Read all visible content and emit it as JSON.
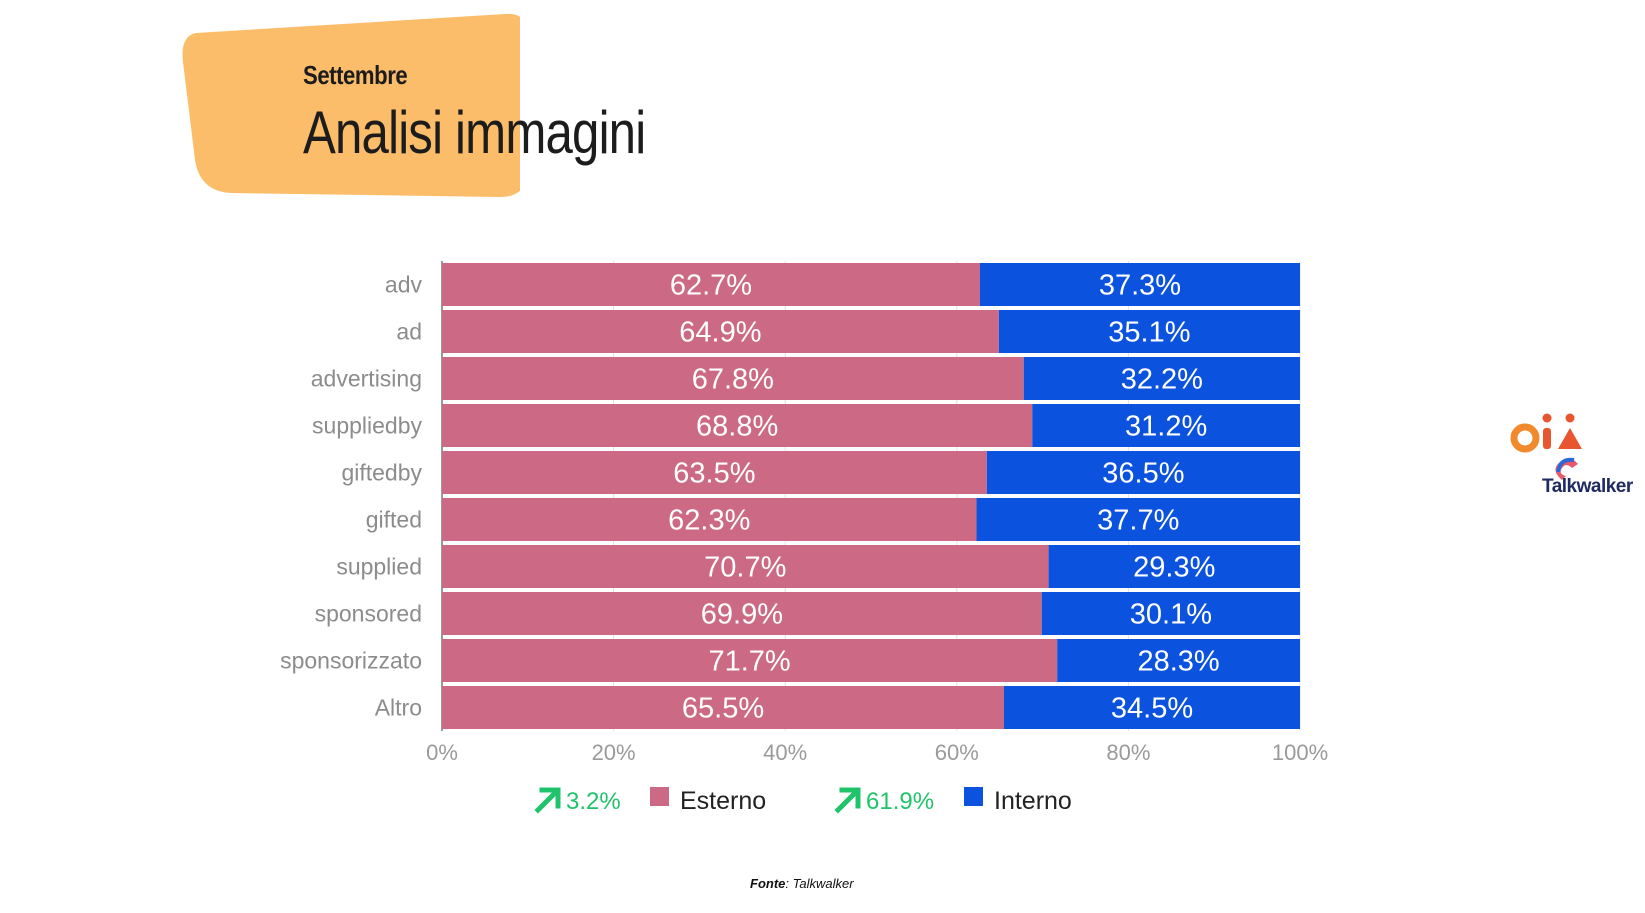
{
  "header": {
    "subtitle": "Settembre",
    "title": "Analisi immagini",
    "blob_color": "#fbbd6a"
  },
  "chart_data": {
    "type": "bar",
    "orientation": "horizontal",
    "stacked": true,
    "percent_stacked": true,
    "categories": [
      "adv",
      "ad",
      "advertising",
      "suppliedby",
      "giftedby",
      "gifted",
      "supplied",
      "sponsored",
      "sponsorizzato",
      "Altro"
    ],
    "series": [
      {
        "name": "Esterno",
        "color": "#cc6a85",
        "values": [
          62.7,
          64.9,
          67.8,
          68.8,
          63.5,
          62.3,
          70.7,
          69.9,
          71.7,
          65.5
        ],
        "labels": [
          "62.7%",
          "64.9%",
          "67.8%",
          "68.8%",
          "63.5%",
          "62.3%",
          "70.7%",
          "69.9%",
          "71.7%",
          "65.5%"
        ]
      },
      {
        "name": "Interno",
        "color": "#0b52df",
        "values": [
          37.3,
          35.1,
          32.2,
          31.2,
          36.5,
          37.7,
          29.3,
          30.1,
          28.3,
          34.5
        ],
        "labels": [
          "37.3%",
          "35.1%",
          "32.2%",
          "31.2%",
          "36.5%",
          "37.7%",
          "29.3%",
          "30.1%",
          "28.3%",
          "34.5%"
        ]
      }
    ],
    "xlim": [
      0,
      100
    ],
    "x_ticks": [
      "0%",
      "20%",
      "40%",
      "60%",
      "80%",
      "100%"
    ],
    "grid": true,
    "legend": {
      "placement": "bottom",
      "items": [
        {
          "trend": "3.2%",
          "trend_color": "#1fc46a",
          "name": "Esterno",
          "color": "#cc6a85"
        },
        {
          "trend": "61.9%",
          "trend_color": "#1fc46a",
          "name": "Interno",
          "color": "#0b52df"
        }
      ]
    }
  },
  "logos": {
    "oim": "oim",
    "talkwalker": "Talkwalker"
  },
  "source": {
    "label": "Fonte",
    "value": ": Talkwalker"
  }
}
